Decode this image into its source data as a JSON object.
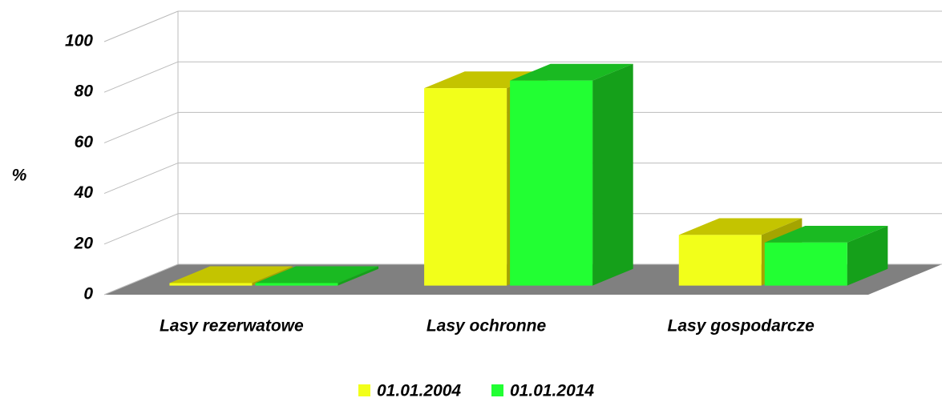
{
  "chart_data": {
    "type": "bar3d",
    "y_label": "%",
    "categories": [
      "Lasy rezerwatowe",
      "Lasy ochronne",
      "Lasy gospodarcze"
    ],
    "series": [
      {
        "name": "01.01.2004",
        "color": "#f2ff1a",
        "values": [
          1,
          78,
          20
        ]
      },
      {
        "name": "01.01.2014",
        "color": "#22ff33",
        "values": [
          1,
          81,
          17
        ]
      }
    ],
    "ylim": [
      0,
      100
    ],
    "yticks": [
      0,
      20,
      40,
      60,
      80,
      100
    ],
    "grid": true,
    "legend": "bottom"
  }
}
